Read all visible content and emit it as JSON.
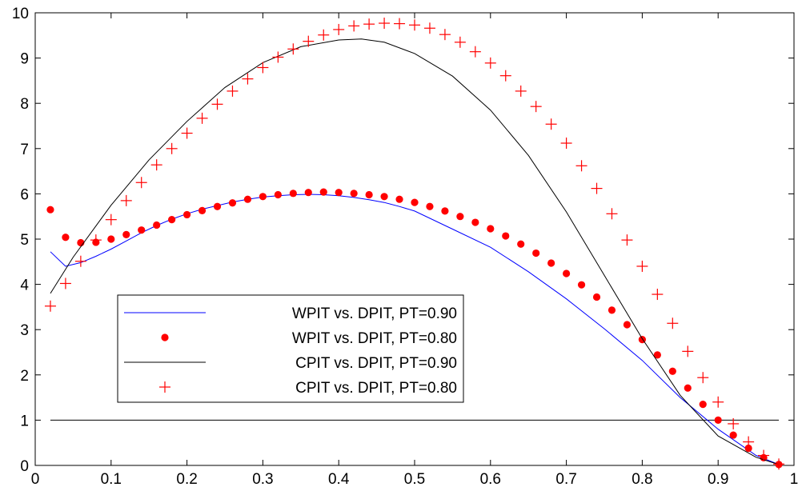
{
  "chart_data": {
    "type": "line",
    "title": "",
    "xlabel": "",
    "ylabel": "",
    "xlim": [
      0,
      1
    ],
    "ylim": [
      0,
      10
    ],
    "grid": false,
    "legend_placement": "lower-left",
    "x_ticks": [
      "0",
      "0.1",
      "0.2",
      "0.3",
      "0.4",
      "0.5",
      "0.6",
      "0.7",
      "0.8",
      "0.9",
      "1"
    ],
    "y_ticks": [
      "0",
      "1",
      "2",
      "3",
      "4",
      "5",
      "6",
      "7",
      "8",
      "9",
      "10"
    ],
    "reference_line": {
      "y": 1,
      "x_from": 0.02,
      "x_to": 0.98,
      "color": "#000000"
    },
    "series": [
      {
        "name": "WPIT vs. DPIT, PT=0.90",
        "style": "line",
        "color": "#0000ff",
        "x": [
          0.02,
          0.04,
          0.06,
          0.08,
          0.1,
          0.12,
          0.14,
          0.16,
          0.18,
          0.2,
          0.22,
          0.24,
          0.26,
          0.28,
          0.3,
          0.32,
          0.34,
          0.36,
          0.38,
          0.4,
          0.42,
          0.44,
          0.46,
          0.48,
          0.5,
          0.55,
          0.6,
          0.65,
          0.7,
          0.75,
          0.8,
          0.85,
          0.9,
          0.95,
          0.98
        ],
        "y": [
          4.72,
          4.4,
          4.48,
          4.62,
          4.78,
          4.96,
          5.14,
          5.3,
          5.44,
          5.56,
          5.66,
          5.74,
          5.82,
          5.88,
          5.93,
          5.96,
          5.98,
          5.99,
          5.98,
          5.96,
          5.92,
          5.87,
          5.81,
          5.72,
          5.62,
          5.22,
          4.82,
          4.28,
          3.68,
          3.02,
          2.32,
          1.5,
          0.8,
          0.22,
          0.02
        ]
      },
      {
        "name": "WPIT vs. DPIT, PT=0.80",
        "style": "dot",
        "color": "#ff0000",
        "x": [
          0.02,
          0.04,
          0.06,
          0.08,
          0.1,
          0.12,
          0.14,
          0.16,
          0.18,
          0.2,
          0.22,
          0.24,
          0.26,
          0.28,
          0.3,
          0.32,
          0.34,
          0.36,
          0.38,
          0.4,
          0.42,
          0.44,
          0.46,
          0.48,
          0.5,
          0.52,
          0.54,
          0.56,
          0.58,
          0.6,
          0.62,
          0.64,
          0.66,
          0.68,
          0.7,
          0.72,
          0.74,
          0.76,
          0.78,
          0.8,
          0.82,
          0.84,
          0.86,
          0.88,
          0.9,
          0.92,
          0.94,
          0.96,
          0.98
        ],
        "y": [
          5.65,
          5.04,
          4.92,
          4.93,
          5.0,
          5.1,
          5.2,
          5.31,
          5.43,
          5.54,
          5.63,
          5.72,
          5.8,
          5.88,
          5.94,
          5.98,
          6.01,
          6.03,
          6.04,
          6.03,
          6.01,
          5.98,
          5.94,
          5.88,
          5.81,
          5.72,
          5.62,
          5.5,
          5.37,
          5.23,
          5.07,
          4.89,
          4.69,
          4.47,
          4.24,
          3.99,
          3.72,
          3.43,
          3.11,
          2.78,
          2.44,
          2.08,
          1.71,
          1.35,
          1.0,
          0.67,
          0.38,
          0.17,
          0.02
        ]
      },
      {
        "name": "CPIT vs. DPIT, PT=0.90",
        "style": "line",
        "color": "#000000",
        "x": [
          0.02,
          0.05,
          0.1,
          0.15,
          0.2,
          0.25,
          0.3,
          0.35,
          0.4,
          0.43,
          0.46,
          0.5,
          0.55,
          0.6,
          0.65,
          0.7,
          0.75,
          0.8,
          0.85,
          0.9,
          0.95,
          0.98
        ],
        "y": [
          3.8,
          4.6,
          5.75,
          6.75,
          7.6,
          8.35,
          8.9,
          9.25,
          9.4,
          9.42,
          9.35,
          9.1,
          8.6,
          7.85,
          6.85,
          5.6,
          4.2,
          2.8,
          1.55,
          0.65,
          0.18,
          0.02
        ]
      },
      {
        "name": "CPIT vs. DPIT, PT=0.80",
        "style": "plus",
        "color": "#ff0000",
        "x": [
          0.02,
          0.04,
          0.06,
          0.08,
          0.1,
          0.12,
          0.14,
          0.16,
          0.18,
          0.2,
          0.22,
          0.24,
          0.26,
          0.28,
          0.3,
          0.32,
          0.34,
          0.36,
          0.38,
          0.4,
          0.42,
          0.44,
          0.46,
          0.48,
          0.5,
          0.52,
          0.54,
          0.56,
          0.58,
          0.6,
          0.62,
          0.64,
          0.66,
          0.68,
          0.7,
          0.72,
          0.74,
          0.76,
          0.78,
          0.8,
          0.82,
          0.84,
          0.86,
          0.88,
          0.9,
          0.92,
          0.94,
          0.96,
          0.98
        ],
        "y": [
          3.52,
          4.02,
          4.51,
          4.98,
          5.43,
          5.85,
          6.25,
          6.64,
          7.0,
          7.34,
          7.67,
          7.98,
          8.27,
          8.54,
          8.79,
          9.02,
          9.2,
          9.37,
          9.51,
          9.63,
          9.71,
          9.75,
          9.77,
          9.76,
          9.73,
          9.66,
          9.52,
          9.35,
          9.14,
          8.89,
          8.61,
          8.27,
          7.93,
          7.54,
          7.12,
          6.62,
          6.12,
          5.56,
          4.98,
          4.4,
          3.78,
          3.14,
          2.52,
          1.94,
          1.4,
          0.92,
          0.52,
          0.22,
          0.03
        ]
      }
    ]
  }
}
